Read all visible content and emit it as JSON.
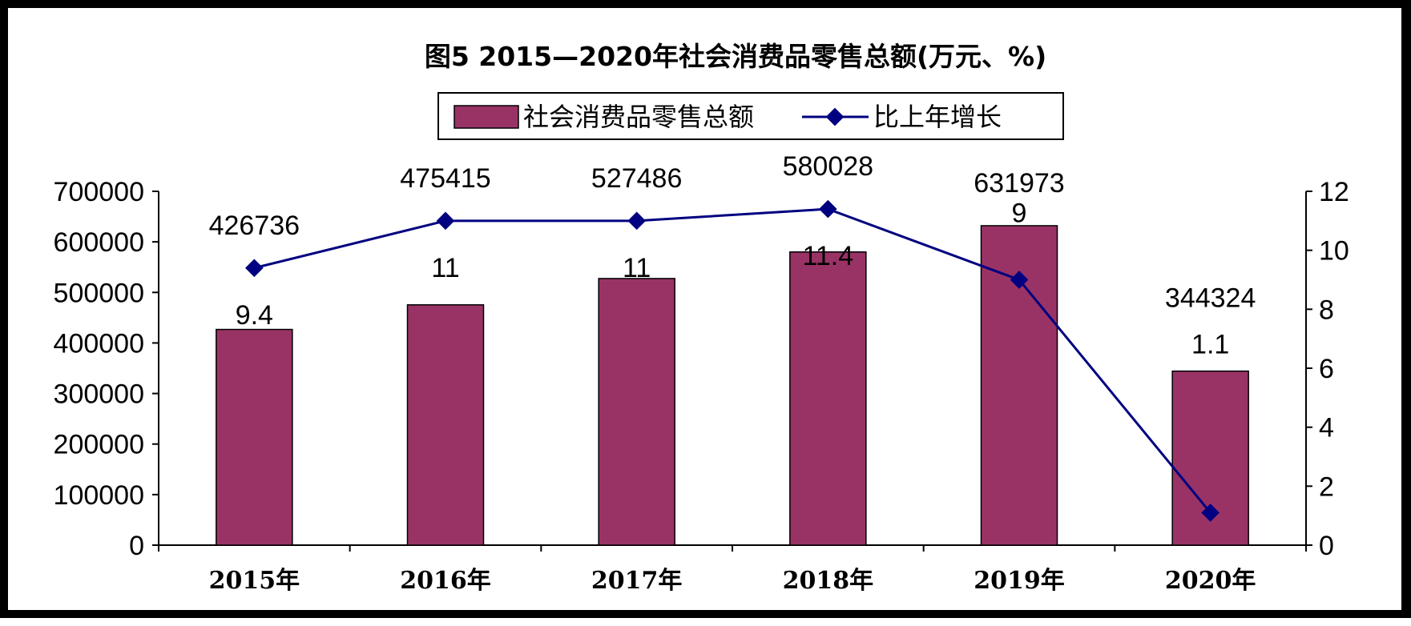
{
  "chart_data": {
    "type": "bar",
    "title": "图5  2015—2020年社会消费品零售总额(万元、%)",
    "categories": [
      "2015年",
      "2016年",
      "2017年",
      "2018年",
      "2019年",
      "2020年"
    ],
    "series": [
      {
        "name": "社会消费品零售总额",
        "type": "bar",
        "axis": "left",
        "color": "#993366",
        "values": [
          426736,
          475415,
          527486,
          580028,
          631973,
          344324
        ],
        "labels": [
          "426736",
          "475415",
          "527486",
          "580028",
          "631973",
          "344324"
        ]
      },
      {
        "name": "比上年增长",
        "type": "line",
        "axis": "right",
        "color": "#000080",
        "values": [
          9.4,
          11,
          11,
          11.4,
          9,
          1.1
        ],
        "labels": [
          "9.4",
          "11",
          "11",
          "11.4",
          "9",
          "1.1"
        ]
      }
    ],
    "y_left": {
      "min": 0,
      "max": 700000,
      "ticks": [
        "0",
        "100000",
        "200000",
        "300000",
        "400000",
        "500000",
        "600000",
        "700000"
      ]
    },
    "y_right": {
      "min": 0,
      "max": 12,
      "ticks": [
        "0",
        "2",
        "4",
        "6",
        "8",
        "10",
        "12"
      ]
    },
    "legend_position": "top",
    "grid": false
  }
}
